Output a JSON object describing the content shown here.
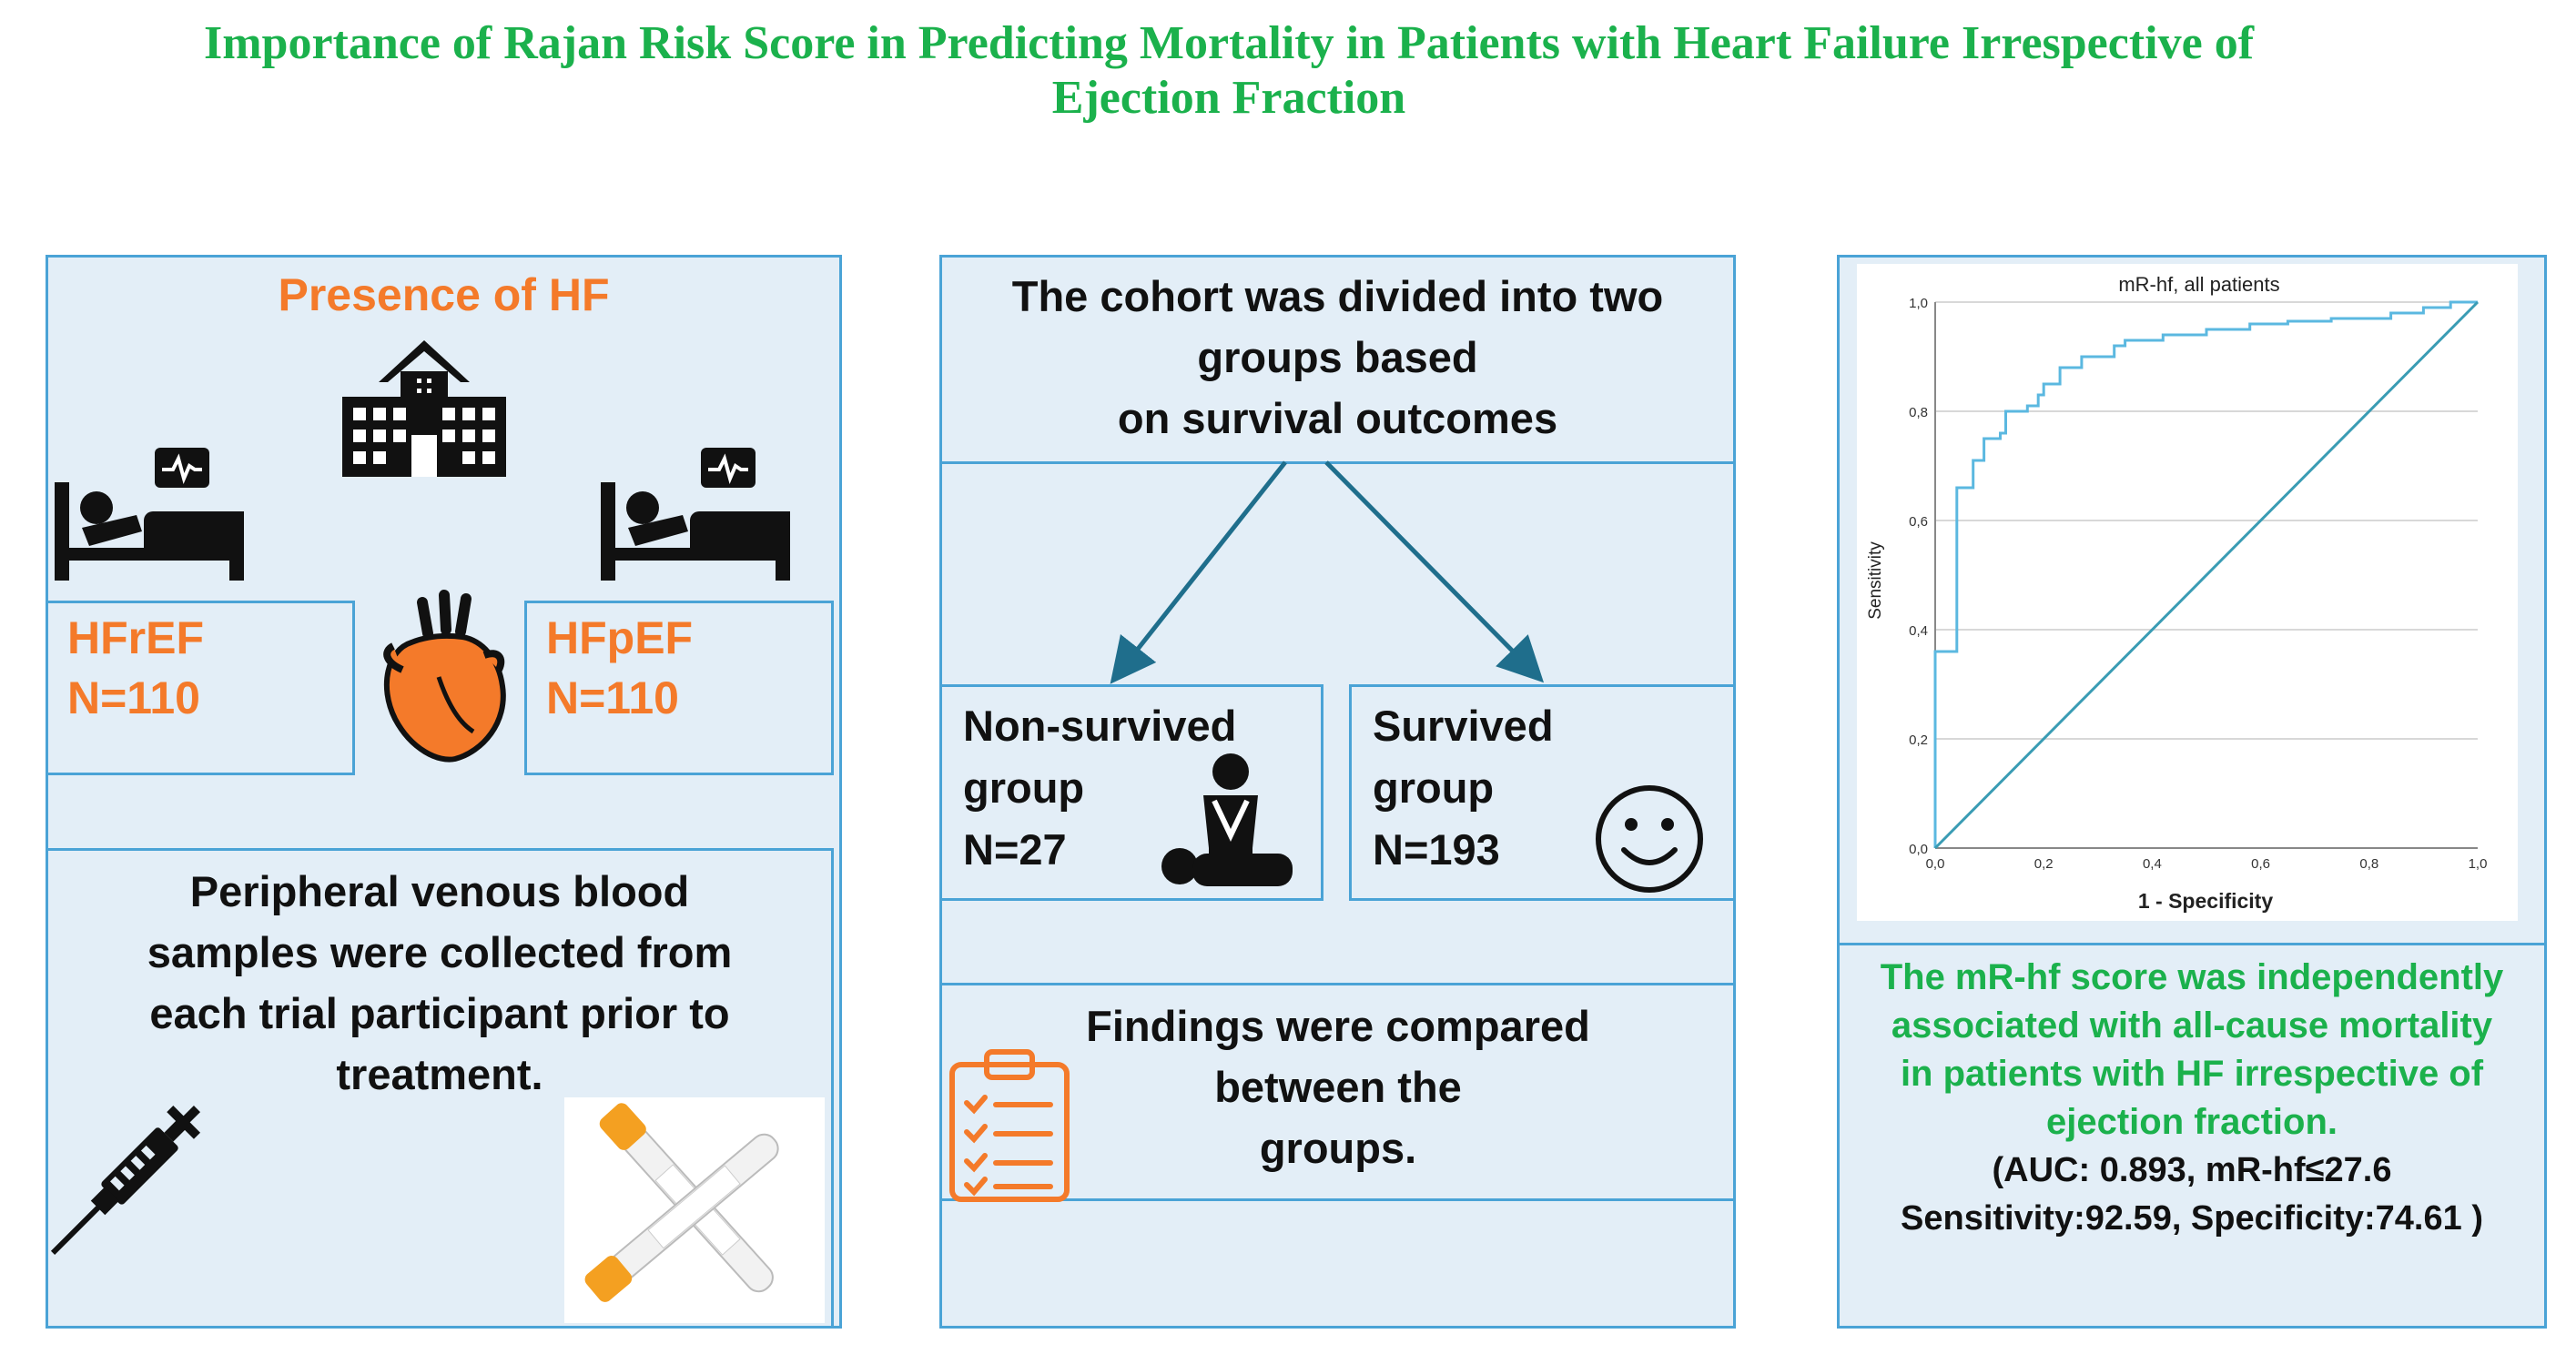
{
  "title": {
    "line1": "Importance of Rajan Risk Score in Predicting Mortality in Patients with Heart Failure Irrespective of",
    "line2": "Ejection Fraction"
  },
  "left": {
    "heading": "Presence of HF",
    "hfref": {
      "label": "HFrEF",
      "n": "N=110"
    },
    "hfpef": {
      "label": "HFpEF",
      "n": "N=110"
    },
    "blood_line1": "Peripheral venous blood",
    "blood_line2": "samples were collected from",
    "blood_line3": "each trial participant prior to",
    "blood_line4": "treatment."
  },
  "middle": {
    "cohort_line1": "The cohort was divided into two",
    "cohort_line2": "groups based",
    "cohort_line3": "on survival outcomes",
    "nonsurvived": {
      "line1": "Non-survived",
      "line2": "group",
      "n": "N=27"
    },
    "survived": {
      "line1": "Survived",
      "line2": "group",
      "n": "N=193"
    },
    "findings_line1": "Findings were compared",
    "findings_line2": "between the",
    "findings_line3": "groups."
  },
  "right": {
    "conclusion_line1": "The mR-hf score was independently",
    "conclusion_line2": "associated with all-cause mortality",
    "conclusion_line3": "in patients with HF irrespective of",
    "conclusion_line4": "ejection fraction.",
    "stats_line1": "(AUC: 0.893, mR-hf≤27.6",
    "stats_line2": "Sensitivity:92.59, Specificity:74.61 )"
  },
  "colors": {
    "title_green": "#1bb14c",
    "accent_orange": "#f47a2a",
    "border_blue": "#4aa3d6",
    "panel_bg": "#e3eef7",
    "roc_line": "#5bb8e0",
    "ref_line": "#3a9cb4",
    "arrow": "#1f6e8c"
  },
  "icons": [
    "hospital-icon",
    "patient-bed-icon",
    "monitor-icon",
    "heart-icon",
    "syringe-icon",
    "blood-tube-icon",
    "cpr-icon",
    "smiley-icon",
    "clipboard-icon"
  ],
  "chart_data": {
    "type": "line",
    "title": "mR-hf, all patients",
    "xlabel": "1 - Specificity",
    "ylabel": "Sensitivity",
    "xlim": [
      0,
      1
    ],
    "ylim": [
      0,
      1
    ],
    "xticks": [
      "0,0",
      "0,2",
      "0,4",
      "0,6",
      "0,8",
      "1,0"
    ],
    "yticks": [
      "0,0",
      "0,2",
      "0,4",
      "0,6",
      "0,8",
      "1,0"
    ],
    "grid": "horizontal",
    "series": [
      {
        "name": "ROC curve",
        "x": [
          0,
          0,
          0.04,
          0.04,
          0.07,
          0.07,
          0.09,
          0.09,
          0.12,
          0.12,
          0.13,
          0.13,
          0.17,
          0.17,
          0.19,
          0.19,
          0.2,
          0.2,
          0.23,
          0.23,
          0.27,
          0.27,
          0.33,
          0.33,
          0.35,
          0.35,
          0.42,
          0.42,
          0.5,
          0.5,
          0.58,
          0.58,
          0.65,
          0.65,
          0.73,
          0.73,
          0.84,
          0.84,
          0.9,
          0.9,
          0.95,
          0.95,
          1.0
        ],
        "y": [
          0,
          0.36,
          0.36,
          0.66,
          0.66,
          0.71,
          0.71,
          0.75,
          0.75,
          0.76,
          0.76,
          0.8,
          0.8,
          0.81,
          0.81,
          0.83,
          0.83,
          0.85,
          0.85,
          0.88,
          0.88,
          0.9,
          0.9,
          0.92,
          0.92,
          0.93,
          0.93,
          0.94,
          0.94,
          0.95,
          0.95,
          0.96,
          0.96,
          0.965,
          0.965,
          0.97,
          0.97,
          0.98,
          0.98,
          0.99,
          0.99,
          1.0,
          1.0
        ]
      },
      {
        "name": "Reference line",
        "x": [
          0,
          1
        ],
        "y": [
          0,
          1
        ]
      }
    ]
  }
}
